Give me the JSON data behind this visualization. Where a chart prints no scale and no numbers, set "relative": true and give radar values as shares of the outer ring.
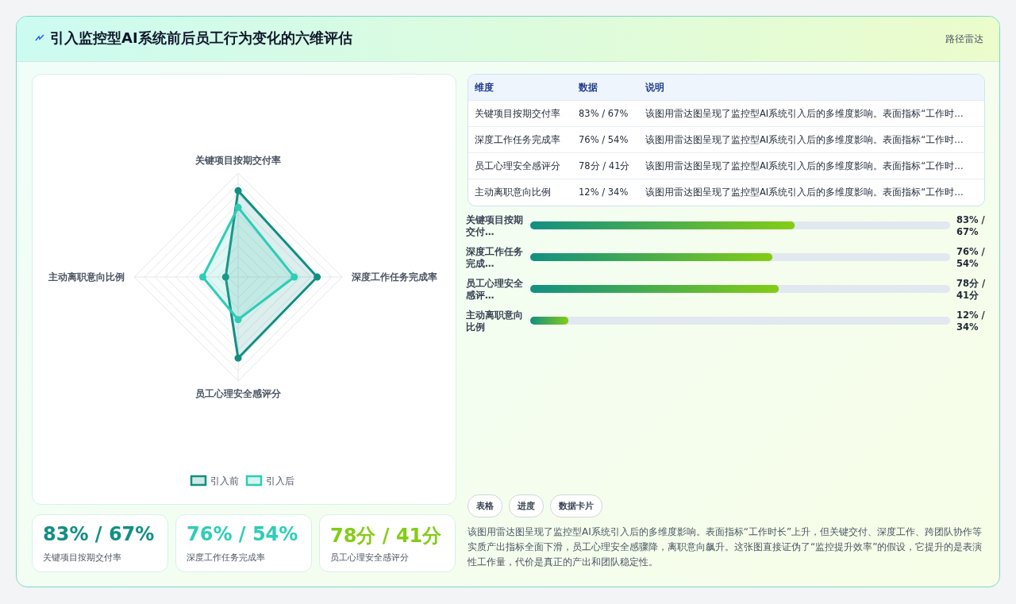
{
  "chart_data": [
    {
      "type": "other",
      "title": "引入监控型AI系统前后员工行为变化的六维评估",
      "annotations": [
        "路径雷达"
      ]
    },
    {
      "type": "radar",
      "relative": true,
      "categories": [
        "关键项目按期交付率",
        "深度工作任务完成率",
        "员工心理安全感评分",
        "主动离职意向比例"
      ],
      "series": [
        {
          "name": "引入前",
          "color": "#128f83",
          "values": [
            0.83,
            0.76,
            0.78,
            0.12
          ]
        },
        {
          "name": "引入后",
          "color": "#2ecdb6",
          "values": [
            0.67,
            0.54,
            0.41,
            0.34
          ]
        }
      ],
      "legend": "bottom",
      "marker": "circle",
      "line_style": "solid"
    },
    {
      "type": "other",
      "annotations": [
        "维度",
        "数据",
        "说明",
        "关键项目按期交付率",
        "83% / 67%",
        "该图用雷达图呈现了监控型AI系统引入后的多维度影响。表面指标“工作时…",
        "深度工作任务完成率",
        "76% / 54%",
        "该图用雷达图呈现了监控型AI系统引入后的多维度影响。表面指标“工作时…",
        "员工心理安全感评分",
        "78分 / 41分",
        "该图用雷达图呈现了监控型AI系统引入后的多维度影响。表面指标“工作时…",
        "主动离职意向比例",
        "12% / 34%",
        "该图用雷达图呈现了监控型AI系统引入后的多维度影响。表面指标“工作时…"
      ]
    },
    {
      "type": "bar",
      "orientation": "horizontal",
      "categories": [
        "关键项目按期交付…",
        "深度工作任务完成…",
        "员工心理安全感评…",
        "主动离职意向比例"
      ],
      "values": [
        83,
        76,
        78,
        12
      ],
      "value_labels": [
        "83% / 67%",
        "76% / 54%",
        "78分 / 41分",
        "12% / 34%"
      ],
      "color": "#128f83"
    },
    {
      "type": "other",
      "annotations": [
        "83% / 67%",
        "关键项目按期交付率",
        "76% / 54%",
        "深度工作任务完成率",
        "78分 / 41分",
        "员工心理安全感评分"
      ],
      "colors": [
        "#128f83",
        "#2ecdb6",
        "#84cc16"
      ]
    },
    {
      "type": "other",
      "annotations": [
        "表格",
        "进度",
        "数据卡片",
        "该图用雷达图呈现了监控型AI系统引入后的多维度影响。表面指标“工作时长”上升，但关键交付、深度工作、跨团队协作等实质产出指标全面下滑，员工心理安全感骤降，离职意向飙升。这张图直接证伪了“监控提升效率”的假设，它提升的是表演性工作量，代价是真正的产出和团队稳定性。"
      ]
    }
  ]
}
